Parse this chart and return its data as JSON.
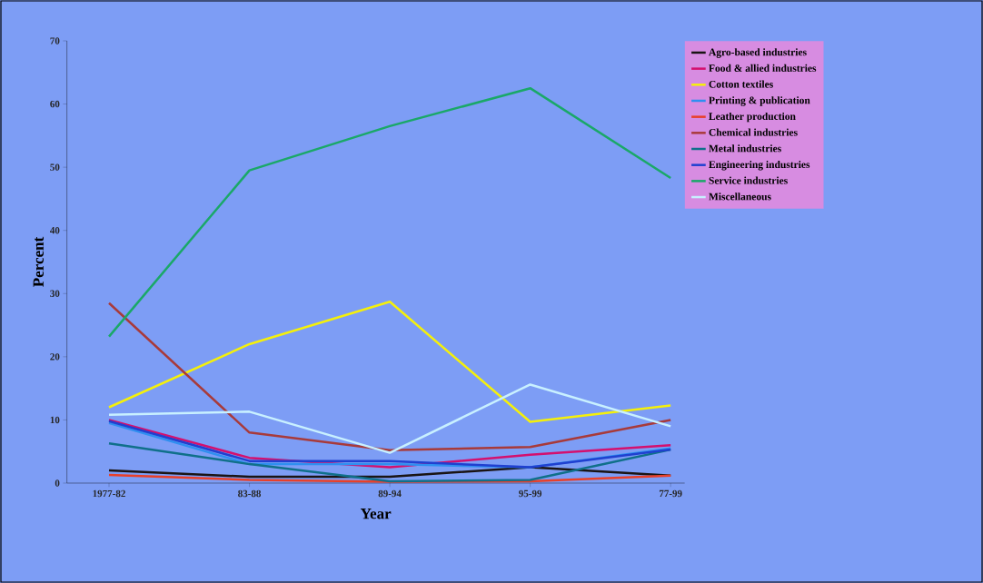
{
  "chart_data": {
    "type": "line",
    "xlabel": "Year",
    "ylabel": "Percent",
    "categories": [
      "1977-82",
      "83-88",
      "89-94",
      "95-99",
      "77-99"
    ],
    "ylim": [
      0,
      70
    ],
    "yticks": [
      0,
      10,
      20,
      30,
      40,
      50,
      60,
      70
    ],
    "legend": "top right",
    "grid": false,
    "series": [
      {
        "name": "Agro-based industries",
        "color": "#1a1414",
        "values": [
          2,
          1,
          1,
          2.5,
          1.2
        ]
      },
      {
        "name": "Food & allied industries",
        "color": "#d4106e",
        "values": [
          10,
          4,
          2.5,
          4.5,
          6
        ]
      },
      {
        "name": "Cotton textiles",
        "color": "#f5f00a",
        "values": [
          12,
          22,
          28.7,
          9.7,
          12.3
        ]
      },
      {
        "name": "Printing & publication",
        "color": "#2f8ff0",
        "values": [
          9.5,
          3,
          3,
          2.5,
          5.5
        ]
      },
      {
        "name": "Leather production",
        "color": "#e8402a",
        "values": [
          1.3,
          0.5,
          0.2,
          0.3,
          1.2
        ]
      },
      {
        "name": "Chemical industries",
        "color": "#a83a3a",
        "values": [
          28.5,
          8,
          5.2,
          5.7,
          10
        ]
      },
      {
        "name": "Metal industries",
        "color": "#10708a",
        "values": [
          6.3,
          3,
          0.3,
          0.5,
          5.3
        ]
      },
      {
        "name": "Engineering industries",
        "color": "#2040d0",
        "values": [
          9.8,
          3.5,
          3.5,
          2.5,
          5.3
        ]
      },
      {
        "name": "Service industries",
        "color": "#1aa868",
        "values": [
          23.2,
          49.5,
          56.5,
          62.5,
          48.3
        ]
      },
      {
        "name": "Miscellaneous",
        "color": "#c8f0ff",
        "values": [
          10.8,
          11.3,
          4.8,
          15.6,
          9
        ]
      }
    ]
  }
}
